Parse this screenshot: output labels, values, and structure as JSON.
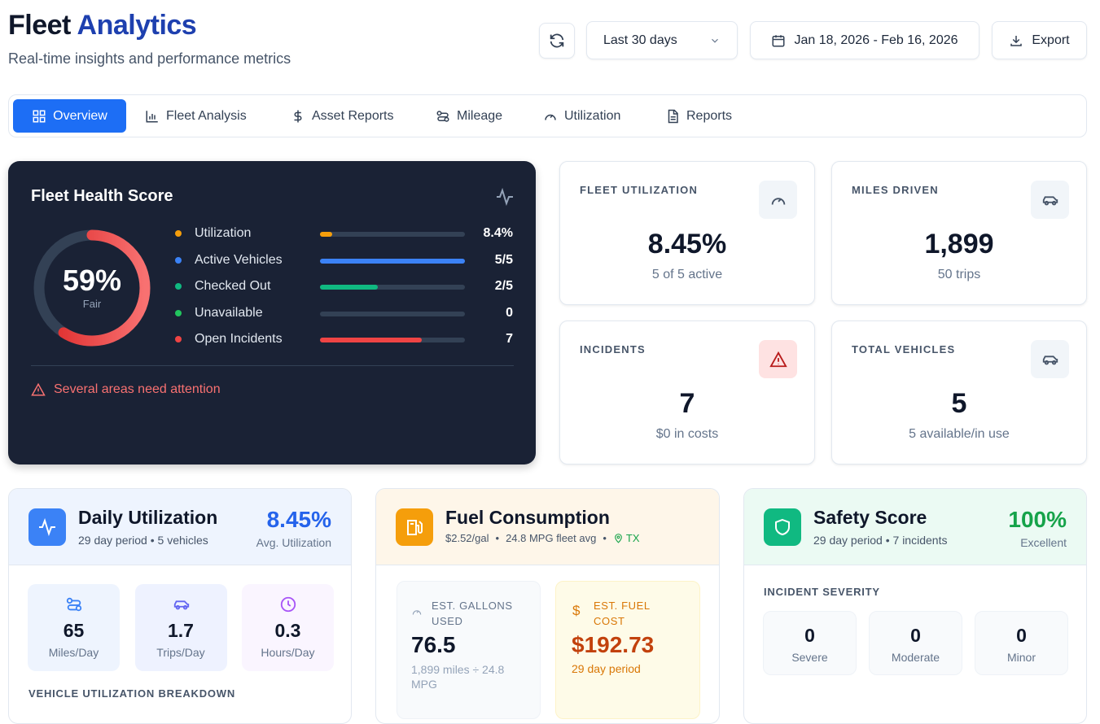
{
  "header": {
    "title_lead": "Fleet",
    "title_accent": "Analytics",
    "subtitle": "Real-time insights and performance metrics"
  },
  "controls": {
    "range": "Last 30 days",
    "dates": "Jan 18, 2026 - Feb 16, 2026",
    "export": "Export"
  },
  "tabs": [
    "Overview",
    "Fleet Analysis",
    "Asset Reports",
    "Mileage",
    "Utilization",
    "Reports"
  ],
  "health": {
    "title": "Fleet Health Score",
    "score": {
      "value": 59,
      "label": "59%"
    },
    "rating": "Fair",
    "rows": [
      {
        "label": "Utilization",
        "value": "8.4%",
        "bar_percent": 8.4,
        "color": "#f59e0b"
      },
      {
        "label": "Active Vehicles",
        "value": "5/5",
        "bar_percent": 100,
        "color": "#3b82f6"
      },
      {
        "label": "Checked Out",
        "value": "2/5",
        "bar_percent": 40,
        "color": "#10b981"
      },
      {
        "label": "Unavailable",
        "value": "0",
        "bar_percent": 0,
        "color": "#22c55e"
      },
      {
        "label": "Open Incidents",
        "value": "7",
        "bar_percent": 70,
        "color": "#ef4444"
      }
    ],
    "warning": "Several areas need attention"
  },
  "stats": [
    {
      "label": "FLEET UTILIZATION",
      "value": "8.45%",
      "sub": "5 of 5 active"
    },
    {
      "label": "MILES DRIVEN",
      "value": "1,899",
      "sub": "50 trips"
    },
    {
      "label": "INCIDENTS",
      "value": "7",
      "sub": "$0 in costs"
    },
    {
      "label": "TOTAL VEHICLES",
      "value": "5",
      "sub": "5 available/in use"
    }
  ],
  "daily": {
    "title": "Daily Utilization",
    "subtitle": "29 day period • 5 vehicles",
    "value": "8.45%",
    "caption": "Avg. Utilization",
    "items": [
      {
        "value": "65",
        "label": "Miles/Day"
      },
      {
        "value": "1.7",
        "label": "Trips/Day"
      },
      {
        "value": "0.3",
        "label": "Hours/Day"
      }
    ],
    "section": "VEHICLE UTILIZATION BREAKDOWN"
  },
  "fuel": {
    "title": "Fuel Consumption",
    "price": "$2.52/gal",
    "mpg": "24.8 MPG fleet avg",
    "state": "TX",
    "gallons": {
      "label": "EST. GALLONS USED",
      "value": "76.5",
      "note": "1,899 miles ÷ 24.8 MPG"
    },
    "cost": {
      "label": "EST. FUEL COST",
      "value": "$192.73",
      "note": "29 day period"
    }
  },
  "safety": {
    "title": "Safety Score",
    "subtitle": "29 day period • 7 incidents",
    "value": "100%",
    "caption": "Excellent",
    "section": "INCIDENT SEVERITY",
    "items": [
      {
        "value": "0",
        "label": "Severe"
      },
      {
        "value": "0",
        "label": "Moderate"
      },
      {
        "value": "0",
        "label": "Minor"
      }
    ]
  }
}
